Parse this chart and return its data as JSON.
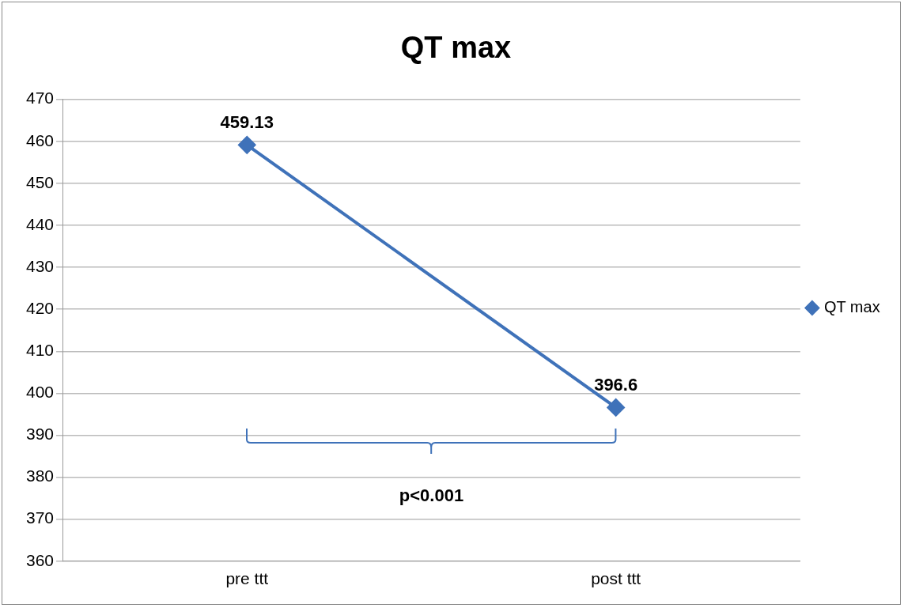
{
  "chart_data": {
    "type": "line",
    "title": "QT max",
    "categories": [
      "pre ttt",
      "post ttt"
    ],
    "series": [
      {
        "name": "QT max",
        "color": "#3f72b9",
        "values": [
          459.13,
          396.6
        ]
      }
    ],
    "ylim": [
      360,
      470
    ],
    "yticks": [
      360,
      370,
      380,
      390,
      400,
      410,
      420,
      430,
      440,
      450,
      460,
      470
    ],
    "grid": "y",
    "legend": "right",
    "marker": "diamond",
    "line_style": "solid",
    "data_labels": true,
    "annotations": [
      "p<0.001"
    ]
  }
}
